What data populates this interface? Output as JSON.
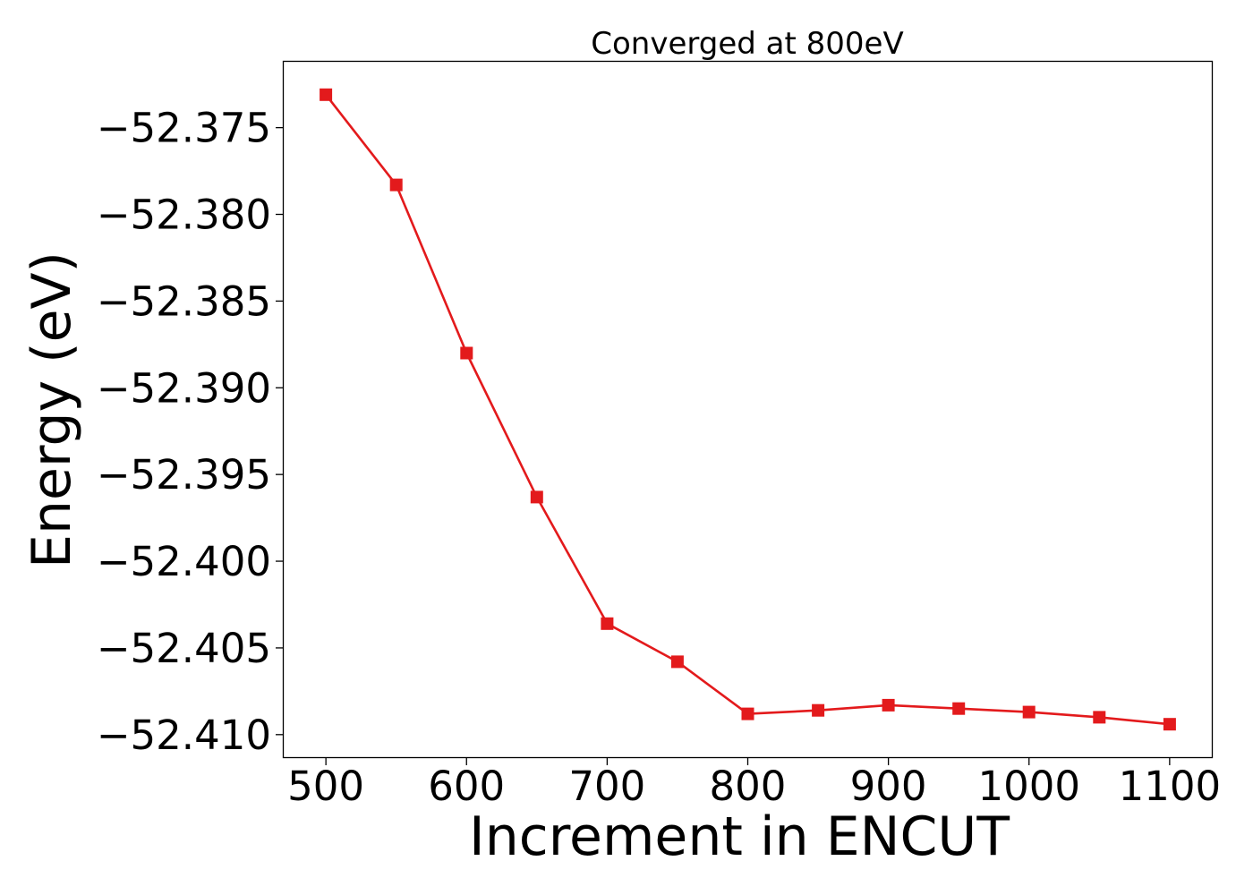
{
  "chart_data": {
    "type": "line",
    "title": "Converged at 800eV",
    "xlabel": "Increment in ENCUT",
    "ylabel": "Energy (eV)",
    "xlim": [
      470,
      1130
    ],
    "ylim": [
      -52.4113,
      -52.3712
    ],
    "xticks": [
      500,
      600,
      700,
      800,
      900,
      1000,
      1100
    ],
    "xtick_labels": [
      "500",
      "600",
      "700",
      "800",
      "900",
      "1000",
      "1100"
    ],
    "yticks": [
      -52.375,
      -52.38,
      -52.385,
      -52.39,
      -52.395,
      -52.4,
      -52.405,
      -52.41
    ],
    "ytick_labels": [
      "−52.375",
      "−52.380",
      "−52.385",
      "−52.390",
      "−52.395",
      "−52.400",
      "−52.405",
      "−52.410"
    ],
    "grid": false,
    "legend": "none",
    "marker": "square",
    "color": "#e31a1c",
    "series": [
      {
        "x": [
          500,
          550,
          600,
          650,
          700,
          750,
          800,
          850,
          900,
          950,
          1000,
          1050,
          1100
        ],
        "y": [
          -52.3731,
          -52.3783,
          -52.388,
          -52.3963,
          -52.4036,
          -52.4058,
          -52.4088,
          -52.4086,
          -52.4083,
          -52.4085,
          -52.4087,
          -52.409,
          -52.4094
        ]
      }
    ]
  }
}
